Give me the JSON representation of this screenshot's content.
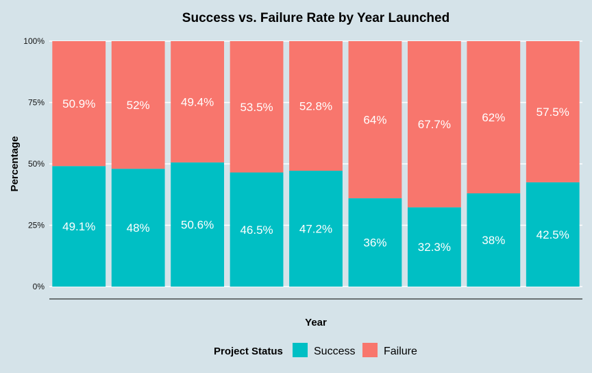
{
  "chart_data": {
    "type": "bar",
    "stacked": true,
    "title": "Success vs. Failure Rate by Year Launched",
    "xlabel": "Year",
    "ylabel": "Percentage",
    "ylim": [
      0,
      100
    ],
    "yticks": [
      "0%",
      "25%",
      "50%",
      "75%",
      "100%"
    ],
    "categories": [
      "",
      "",
      "",
      "",
      "",
      "",
      "",
      "",
      ""
    ],
    "series": [
      {
        "name": "Success",
        "color": "#00bfc4",
        "values": [
          49.1,
          48,
          50.6,
          46.5,
          47.2,
          36,
          32.3,
          38,
          42.5
        ],
        "labels": [
          "49.1%",
          "48%",
          "50.6%",
          "46.5%",
          "47.2%",
          "36%",
          "32.3%",
          "38%",
          "42.5%"
        ]
      },
      {
        "name": "Failure",
        "color": "#f8766d",
        "values": [
          50.9,
          52,
          49.4,
          53.5,
          52.8,
          64,
          67.7,
          62,
          57.5
        ],
        "labels": [
          "50.9%",
          "52%",
          "49.4%",
          "53.5%",
          "52.8%",
          "64%",
          "67.7%",
          "62%",
          "57.5%"
        ]
      }
    ],
    "legend": {
      "title": "Project Status",
      "position": "bottom"
    },
    "grid": true
  },
  "colors": {
    "background": "#d5e3e9",
    "gridline": "#ffffff",
    "axis_line": "#000000"
  }
}
